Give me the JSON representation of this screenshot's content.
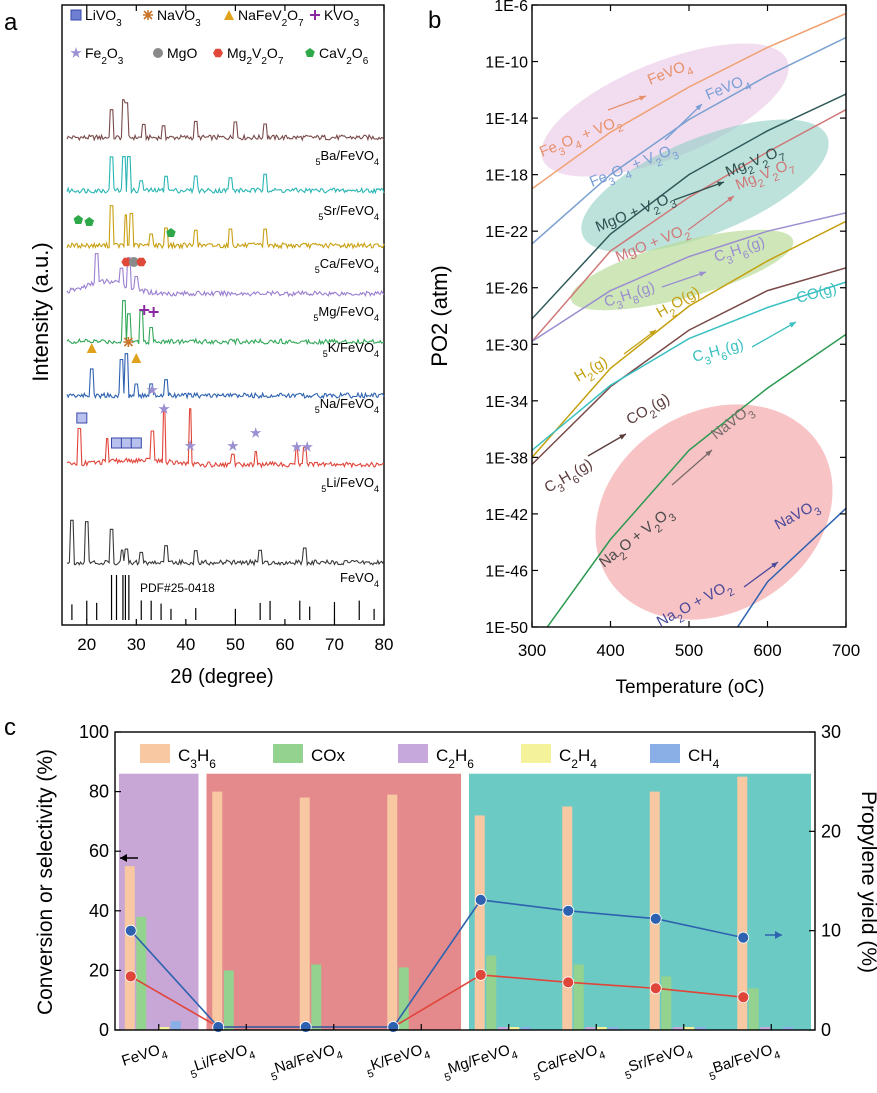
{
  "panels": {
    "a": "a",
    "b": "b",
    "c": "c"
  },
  "chart_data": [
    {
      "panel": "a",
      "type": "line",
      "title": "",
      "xlabel": "2θ (degree)",
      "ylabel": "Intensity (a.u.)",
      "xlim": [
        15,
        80
      ],
      "xticks": [
        "20",
        "30",
        "40",
        "50",
        "60",
        "70",
        "80"
      ],
      "legend": [
        {
          "label": "LiVO3",
          "marker": "square",
          "color": "#6f7fd4"
        },
        {
          "label": "NaVO3",
          "marker": "asterisk",
          "color": "#c8742a"
        },
        {
          "label": "NaFeV2O7",
          "marker": "triangle",
          "color": "#e0a21d"
        },
        {
          "label": "KVO3",
          "marker": "plus",
          "color": "#8a2aa0"
        },
        {
          "label": "Fe2O3",
          "marker": "star",
          "color": "#9b8fd0"
        },
        {
          "label": "MgO",
          "marker": "circle",
          "color": "#8a8a8a"
        },
        {
          "label": "Mg2V2O7",
          "marker": "hexagon",
          "color": "#e0483a"
        },
        {
          "label": "CaV2O6",
          "marker": "pentagon",
          "color": "#2fa84a"
        }
      ],
      "series": [
        {
          "name": "5Ba/FeVO4",
          "color": "#7a4a4a",
          "peaks": [
            25,
            27.5,
            28,
            31.5,
            35.5,
            42,
            50,
            56
          ]
        },
        {
          "name": "5Sr/FeVO4",
          "color": "#2bb5b5",
          "peaks": [
            25,
            27.5,
            28.5,
            31,
            36,
            42,
            49,
            56
          ]
        },
        {
          "name": "5Ca/FeVO4",
          "color": "#c9a012",
          "peaks": [
            25,
            27.8,
            29,
            33,
            36,
            42,
            49,
            56
          ]
        },
        {
          "name": "5Mg/FeVO4",
          "color": "#9a7fd0",
          "peaks": [
            22,
            27,
            28.5,
            30
          ]
        },
        {
          "name": "5K/FeVO4",
          "color": "#33a85a",
          "peaks": [
            27.5,
            28.5,
            31,
            33
          ]
        },
        {
          "name": "5Na/FeVO4",
          "color": "#2e62b0",
          "peaks": [
            21,
            27,
            28,
            30,
            33,
            36
          ]
        },
        {
          "name": "5Li/FeVO4",
          "color": "#e0453a",
          "peaks": [
            18.5,
            24.2,
            33.2,
            35.6,
            40.9,
            49.5,
            54.1,
            62.4,
            64
          ]
        },
        {
          "name": "FeVO4",
          "color": "#3a3a3a",
          "peaks": [
            17,
            20,
            25,
            27.2,
            28,
            31,
            36,
            42,
            55,
            64
          ]
        }
      ],
      "reference": {
        "label": "PDF#25-0418",
        "peaks": [
          17,
          20,
          22,
          25,
          26,
          27.3,
          27.8,
          28.5,
          31,
          33,
          35,
          37,
          42,
          50,
          55,
          57,
          63,
          65,
          70,
          75,
          78
        ]
      }
    },
    {
      "panel": "b",
      "type": "line",
      "xlabel": "Temperature (oC)",
      "ylabel": "PO2 (atm)",
      "xlim": [
        300,
        700
      ],
      "ylim_log10": [
        -50,
        -6
      ],
      "xticks": [
        "300",
        "400",
        "500",
        "600",
        "700"
      ],
      "yticks": [
        "1E-6",
        "1E-10",
        "1E-14",
        "1E-18",
        "1E-22",
        "1E-26",
        "1E-30",
        "1E-34",
        "1E-38",
        "1E-42",
        "1E-46",
        "1E-50"
      ],
      "series": [
        {
          "name": "Fe3O4 + VO2 → FeVO4",
          "color": "#f0a070",
          "x": [
            300,
            400,
            500,
            600,
            700
          ],
          "log10": [
            -19.0,
            -15.0,
            -11.8,
            -9.0,
            -6.6
          ]
        },
        {
          "name": "Fe3O4 + V2O3 → FeVO4",
          "color": "#7aa0d0",
          "x": [
            300,
            400,
            500,
            600,
            700
          ],
          "log10": [
            -22.9,
            -18.0,
            -14.1,
            -11.0,
            -8.3
          ]
        },
        {
          "name": "MgO + V2O3 → Mg2V2O7",
          "color": "#2f5a5a",
          "x": [
            300,
            400,
            500,
            600,
            700
          ],
          "log10": [
            -28.2,
            -22.2,
            -18.0,
            -14.9,
            -12.3
          ]
        },
        {
          "name": "MgO + VO2 → Mg2V2O7",
          "color": "#d07878",
          "x": [
            300,
            400,
            500,
            600,
            700
          ],
          "log10": [
            -29.8,
            -23.4,
            -19.6,
            -16.4,
            -13.4
          ]
        },
        {
          "name": "C3H8(g) → C3H6(g)",
          "color": "#9a8ed0",
          "x": [
            300,
            400,
            500,
            600,
            700
          ],
          "log10": [
            -29.8,
            -26.2,
            -23.8,
            -22.0,
            -20.7
          ]
        },
        {
          "name": "H2(g) → H2O(g)",
          "color": "#c4a010",
          "x": [
            300,
            400,
            500,
            600,
            700
          ],
          "log10": [
            -38.0,
            -31.7,
            -27.3,
            -24.1,
            -21.3
          ]
        },
        {
          "name": "C3H6(g) → CO2(g)",
          "color": "#7a4a4a",
          "x": [
            300,
            400,
            500,
            600,
            700
          ],
          "log10": [
            -38.5,
            -33.0,
            -29.0,
            -26.2,
            -24.6
          ]
        },
        {
          "name": "C3H6(g) → CO(g)",
          "color": "#3ac0c0",
          "x": [
            300,
            400,
            500,
            600,
            700
          ],
          "log10": [
            -37.5,
            -32.9,
            -29.6,
            -27.4,
            -25.6
          ]
        },
        {
          "name": "Na2O + V2O3 → NaVO3",
          "color": "#2a9a50",
          "x": [
            300,
            400,
            500,
            600,
            700
          ],
          "log10": [
            -51.5,
            -43.8,
            -37.5,
            -33.1,
            -29.3
          ]
        },
        {
          "name": "Na2O + VO2 → NaVO3",
          "color": "#2e62b0",
          "x": [
            550,
            600,
            700
          ],
          "log10": [
            -51.0,
            -46.8,
            -41.6
          ]
        }
      ],
      "annotations": [
        "Fe3O4 + VO2",
        "FeVO4",
        "Fe3O4 + V2O3",
        "FeVO4",
        "MgO + V2O3",
        "Mg2V2O7",
        "MgO + VO2",
        "Mg2V2O7",
        "C3H8(g)",
        "C3H6(g)",
        "H2(g)",
        "H2O(g)",
        "C3H6(g)",
        "CO(g)",
        "C3H6(g)",
        "CO2(g)",
        "Na2O + V2O3",
        "NaVO3",
        "Na2O + VO2",
        "NaVO3"
      ]
    },
    {
      "panel": "c",
      "type": "bar",
      "ylabel": "Conversion or selectivity (%)",
      "y2label": "Propylene yield (%)",
      "ylim": [
        0,
        100
      ],
      "y2lim": [
        0,
        30
      ],
      "yticks": [
        "0",
        "20",
        "40",
        "60",
        "80",
        "100"
      ],
      "y2ticks": [
        "0",
        "10",
        "20",
        "30"
      ],
      "categories": [
        "FeVO4",
        "5Li/FeVO4",
        "5Na/FeVO4",
        "5K/FeVO4",
        "5Mg/FeVO4",
        "5Ca/FeVO4",
        "5Sr/FeVO4",
        "5Ba/FeVO4"
      ],
      "series": [
        {
          "name": "C3H6",
          "color": "#f7c8a2",
          "values": [
            55,
            80,
            78,
            79,
            72,
            75,
            80,
            85
          ]
        },
        {
          "name": "COx",
          "color": "#93d28f",
          "values": [
            38,
            20,
            22,
            21,
            25,
            22,
            18,
            14
          ]
        },
        {
          "name": "C2H6",
          "color": "#c7a8dd",
          "values": [
            3,
            0,
            0,
            0,
            1,
            1,
            1,
            1
          ]
        },
        {
          "name": "C2H4",
          "color": "#f4f29a",
          "values": [
            1,
            0,
            0,
            0,
            1,
            1,
            1,
            0
          ]
        },
        {
          "name": "CH4",
          "color": "#8aaee6",
          "values": [
            3,
            0,
            0,
            0,
            1,
            1,
            1,
            1
          ]
        }
      ],
      "lines": [
        {
          "name": "Conversion",
          "axis": "left",
          "color": "#e0453a",
          "values": [
            18,
            1,
            1,
            1,
            18.5,
            16,
            14,
            11
          ]
        },
        {
          "name": "Propylene yield",
          "axis": "right",
          "color": "#2e62b0",
          "values": [
            10,
            0.3,
            0.3,
            0.3,
            13.1,
            12,
            11.2,
            9.3
          ]
        }
      ],
      "groups": [
        {
          "color": "#c8a6d6",
          "from": 0,
          "to": 0
        },
        {
          "color": "#e48a8c",
          "from": 1,
          "to": 3
        },
        {
          "color": "#6ccac4",
          "from": 4,
          "to": 7
        }
      ]
    }
  ]
}
